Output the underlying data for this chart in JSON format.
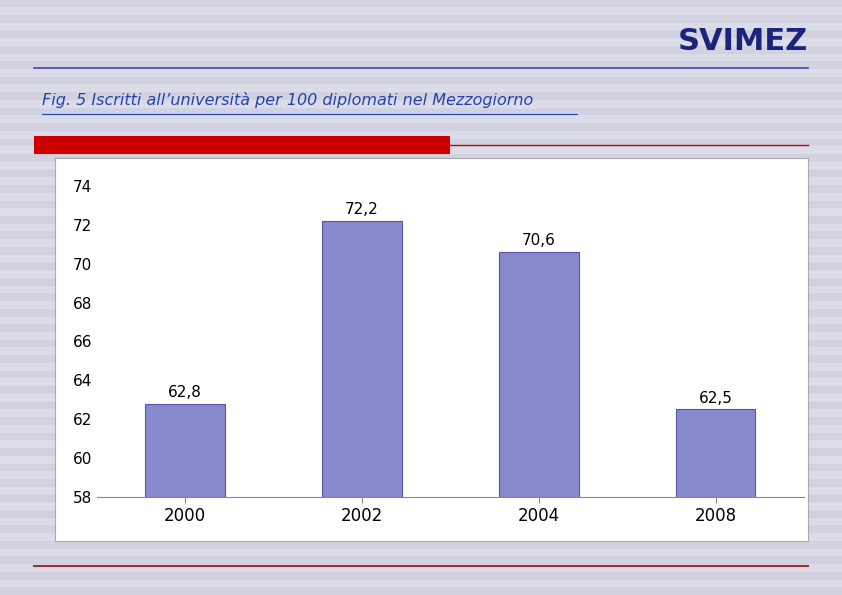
{
  "categories": [
    "2000",
    "2002",
    "2004",
    "2008"
  ],
  "values": [
    62.8,
    72.2,
    70.6,
    62.5
  ],
  "bar_color": "#8888cc",
  "bar_edgecolor": "#5555aa",
  "ylim": [
    58,
    75
  ],
  "yticks": [
    58,
    60,
    62,
    64,
    66,
    68,
    70,
    72,
    74
  ],
  "title": "Fig. 5 Iscritti all’università per 100 diplomati nel Mezzogiorno",
  "svimez_label": "SVIMEZ",
  "background_color": "#dcdce8",
  "plot_bg_color": "#ffffff",
  "bar_labels": [
    "62,8",
    "72,2",
    "70,6",
    "62,5"
  ],
  "red_bar_color": "#cc0000",
  "thin_line_color": "#cc0000",
  "header_line_color": "#4444aa",
  "footer_line_color": "#993333",
  "stripe_color": "#c8c8d8",
  "box_border_color": "#aaaaaa"
}
